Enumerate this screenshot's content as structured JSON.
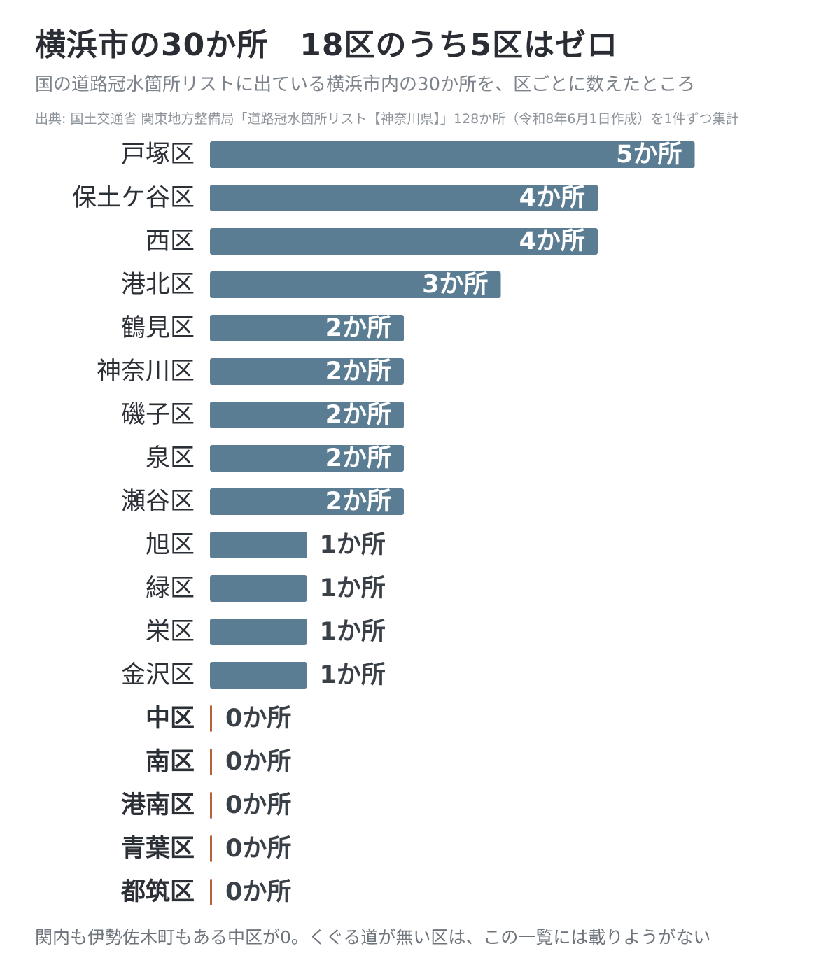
{
  "header": {
    "title": "横浜市の30か所　18区のうち5区はゼロ",
    "subtitle": "国の道路冠水箇所リストに出ている横浜市内の30か所を、区ごとに数えたところ",
    "source": "出典: 国土交通省 関東地方整備局「道路冠水箇所リスト【神奈川県】」128か所（令和8年6月1日作成）を1件ずつ集計"
  },
  "footer": {
    "note": "関内も伊勢佐木町もある中区が0。くぐる道が無い区は、この一覧には載りようがない"
  },
  "chart_data": {
    "type": "bar",
    "orientation": "horizontal",
    "value_suffix": "か所",
    "categories": [
      "戸塚区",
      "保土ケ谷区",
      "西区",
      "港北区",
      "鶴見区",
      "神奈川区",
      "磯子区",
      "泉区",
      "瀬谷区",
      "旭区",
      "緑区",
      "栄区",
      "金沢区",
      "中区",
      "南区",
      "港南区",
      "青葉区",
      "都筑区"
    ],
    "values": [
      5,
      4,
      4,
      3,
      2,
      2,
      2,
      2,
      2,
      1,
      1,
      1,
      1,
      0,
      0,
      0,
      0,
      0
    ],
    "colors": {
      "bar": "#5b7d94",
      "zero_mark": "#b5623a",
      "label_inside": "#ffffff",
      "label_outside": "#3a4048",
      "category": "#2b2f36"
    }
  }
}
